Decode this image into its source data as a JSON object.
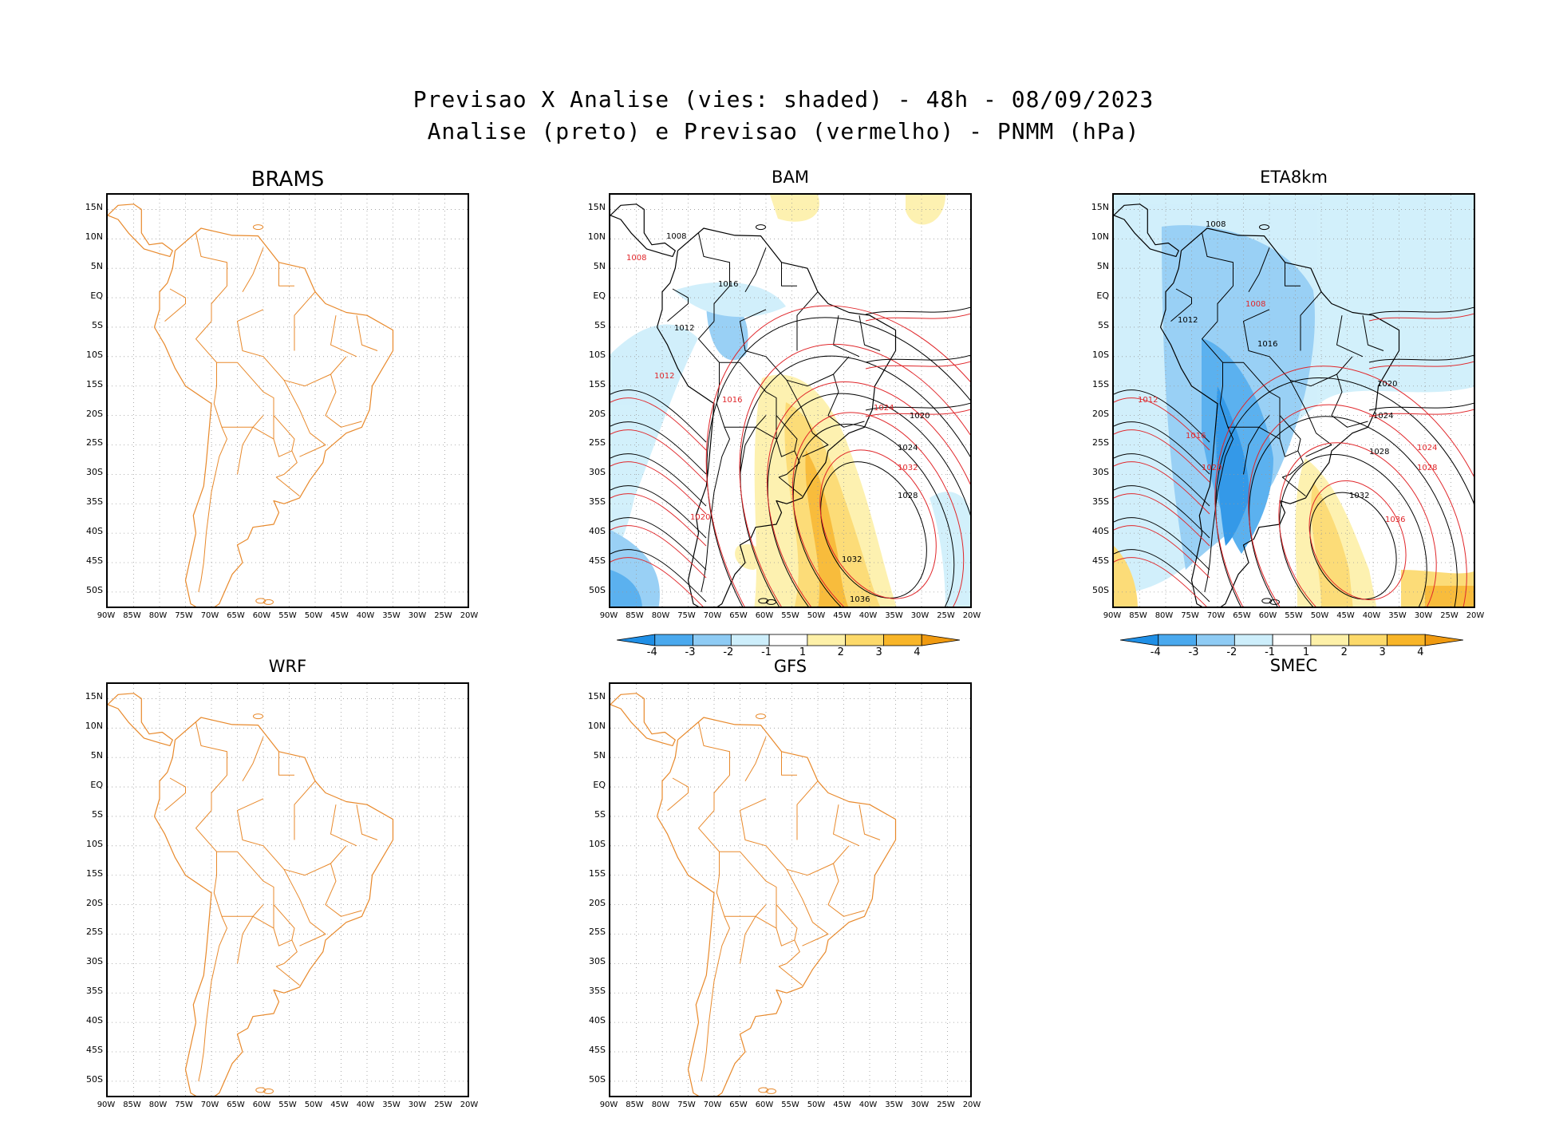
{
  "header": {
    "line1": "Previsao X Analise (vies: shaded) - 48h - 08/09/2023",
    "line2": "Analise (preto) e Previsao (vermelho) - PNMM (hPa)"
  },
  "panels": [
    {
      "id": "brams",
      "name": "BRAMS",
      "has_field": false
    },
    {
      "id": "bam",
      "name": "BAM",
      "has_field": true
    },
    {
      "id": "eta8km",
      "name": "ETA8km",
      "has_field": true
    },
    {
      "id": "wrf",
      "name": "WRF",
      "has_field": false
    },
    {
      "id": "gfs",
      "name": "GFS",
      "has_field": false
    },
    {
      "id": "smec",
      "name": "SMEC",
      "has_field": false
    }
  ],
  "axes": {
    "y_labels": [
      "15N",
      "10N",
      "5N",
      "EQ",
      "5S",
      "10S",
      "15S",
      "20S",
      "25S",
      "30S",
      "35S",
      "40S",
      "45S",
      "50S"
    ],
    "x_labels": [
      "90W",
      "85W",
      "80W",
      "75W",
      "70W",
      "65W",
      "60W",
      "55W",
      "50W",
      "45W",
      "40W",
      "35W",
      "30W",
      "25W",
      "20W"
    ]
  },
  "colorbar": {
    "labels": [
      "-4",
      "-3",
      "-2",
      "-1",
      "1",
      "2",
      "3",
      "4"
    ],
    "colors": [
      "#1f8fe6",
      "#4aa9ee",
      "#8ecbf4",
      "#cdeefb",
      "#ffffff",
      "#fdf0a8",
      "#fcd96a",
      "#f8b528",
      "#f09a10"
    ]
  },
  "contour_labels": {
    "bam": [
      "1008",
      "1012",
      "1016",
      "1020",
      "1024",
      "1028",
      "1032",
      "1036",
      "1008",
      "1012",
      "1016",
      "1020",
      "1024",
      "1032"
    ],
    "eta8km": [
      "1008",
      "1012",
      "1016",
      "1020",
      "1024",
      "1028",
      "1032",
      "1008",
      "1012",
      "1016",
      "1020",
      "1024",
      "1028",
      "1036"
    ]
  },
  "colors": {
    "coast": "#e8892b",
    "analysis": "#000000",
    "forecast": "#e0262a",
    "grid": "#999999"
  }
}
